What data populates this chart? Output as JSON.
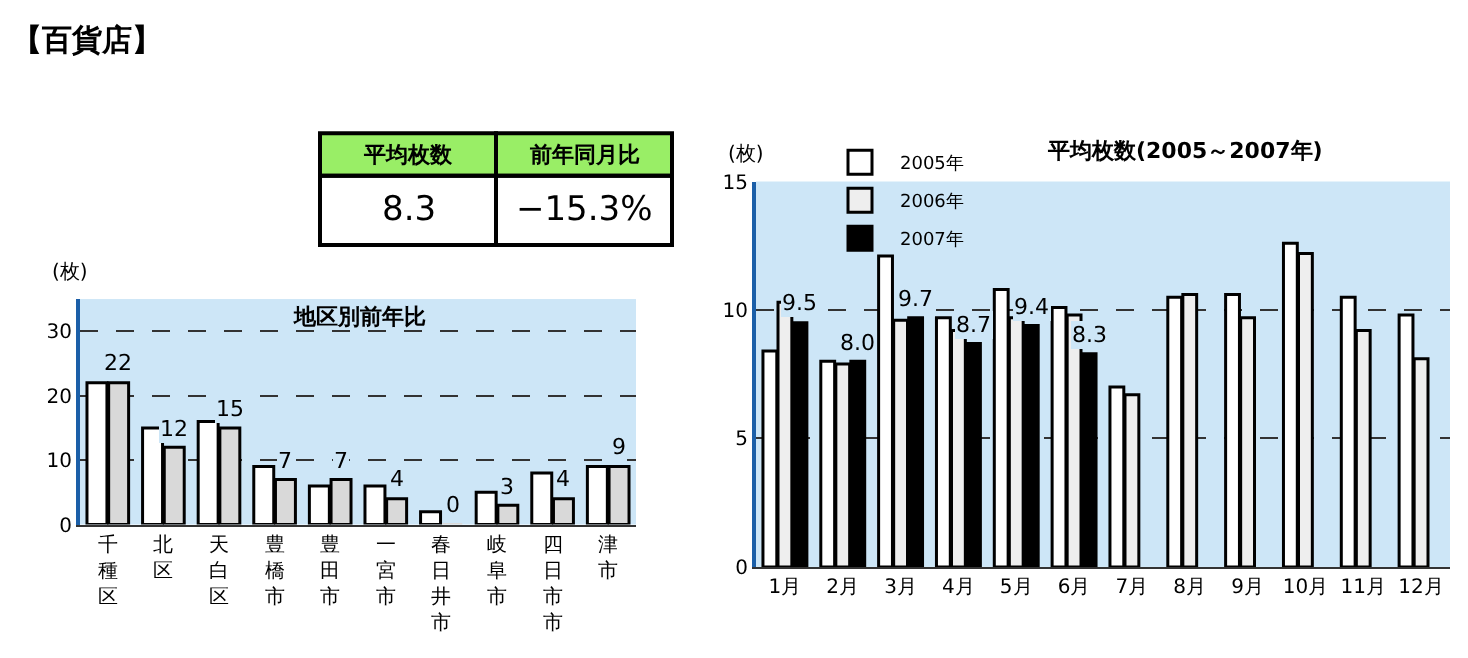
{
  "chart_data": [
    {
      "type": "other",
      "title": "【百貨店】",
      "categories": [
        "平均枚数",
        "前年同月比"
      ],
      "value_labels": [
        "8.3",
        "−15.3%"
      ],
      "colors": [
        "#99ee66",
        "#99ee66"
      ]
    },
    {
      "type": "bar",
      "title": "地区別前年比",
      "ylabel": "(枚)",
      "categories": [
        "千種区",
        "北区",
        "天白区",
        "豊橋市",
        "豊田市",
        "一宮市",
        "春日井市",
        "岐阜市",
        "四日市市",
        "津市"
      ],
      "series": [
        {
          "color": "#ffffff",
          "values": [
            22,
            15,
            16,
            9,
            6,
            6,
            2,
            5,
            8,
            9
          ]
        },
        {
          "color": "#d9d9d9",
          "values": [
            22,
            12,
            15,
            7,
            7,
            4,
            0,
            3,
            4,
            9
          ],
          "value_labels": [
            "22",
            "12",
            "15",
            "7",
            "7",
            "4",
            "0",
            "3",
            "4",
            "9"
          ]
        }
      ],
      "ylim": [
        0,
        35
      ],
      "yticks": [
        0,
        10,
        20,
        30
      ],
      "grid": "y",
      "line_style": "dashed",
      "legend": false
    },
    {
      "type": "bar",
      "title": "平均枚数(2005～2007年)",
      "ylabel": "(枚)",
      "categories": [
        "1月",
        "2月",
        "3月",
        "4月",
        "5月",
        "6月",
        "7月",
        "8月",
        "9月",
        "10月",
        "11月",
        "12月"
      ],
      "series": [
        {
          "name": "2005年",
          "color": "#ffffff",
          "values": [
            8.4,
            8.0,
            12.1,
            9.7,
            10.8,
            10.1,
            7.0,
            10.5,
            10.6,
            12.6,
            10.5,
            9.8
          ]
        },
        {
          "name": "2006年",
          "color": "#eeeeee",
          "values": [
            10.3,
            7.9,
            9.6,
            9.2,
            9.7,
            9.8,
            6.7,
            10.6,
            9.7,
            12.2,
            9.2,
            8.1
          ]
        },
        {
          "name": "2007年",
          "color": "#000000",
          "values": [
            9.5,
            8.0,
            9.7,
            8.7,
            9.4,
            8.3,
            null,
            null,
            null,
            null,
            null,
            null
          ],
          "value_labels": [
            "9.5",
            "8.0",
            "9.7",
            "8.7",
            "9.4",
            "8.3",
            null,
            null,
            null,
            null,
            null,
            null
          ]
        }
      ],
      "ylim": [
        0,
        15
      ],
      "yticks": [
        0,
        5,
        10,
        15
      ],
      "grid": "y",
      "line_style": "dashed",
      "legend": "top left"
    }
  ]
}
